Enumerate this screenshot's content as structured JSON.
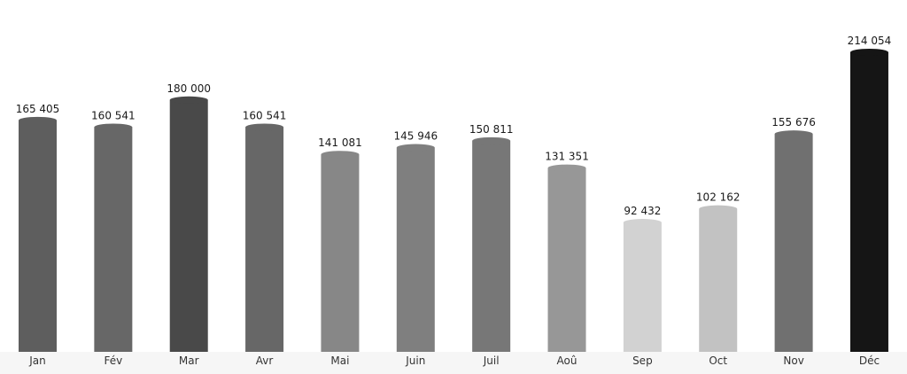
{
  "chart_data": {
    "type": "bar",
    "title": "",
    "xlabel": "",
    "ylabel": "",
    "categories": [
      "Jan",
      "Fév",
      "Mar",
      "Avr",
      "Mai",
      "Juin",
      "Juil",
      "Aoû",
      "Sep",
      "Oct",
      "Nov",
      "Déc"
    ],
    "values": [
      165405,
      160541,
      180000,
      160541,
      141081,
      145946,
      150811,
      131351,
      92432,
      102162,
      155676,
      214054
    ],
    "value_labels": [
      "165 405",
      "160 541",
      "180 000",
      "160 541",
      "141 081",
      "145 946",
      "150 811",
      "131 351",
      "92 432",
      "102 162",
      "155 676",
      "214 054"
    ],
    "colors": [
      "#5e5e5e",
      "#676767",
      "#494949",
      "#676767",
      "#878787",
      "#7f7f7f",
      "#777777",
      "#979797",
      "#d2d2d2",
      "#c2c2c2",
      "#707070",
      "#151515"
    ],
    "ylim": [
      0,
      214054
    ],
    "grid": false,
    "legend": "none"
  }
}
